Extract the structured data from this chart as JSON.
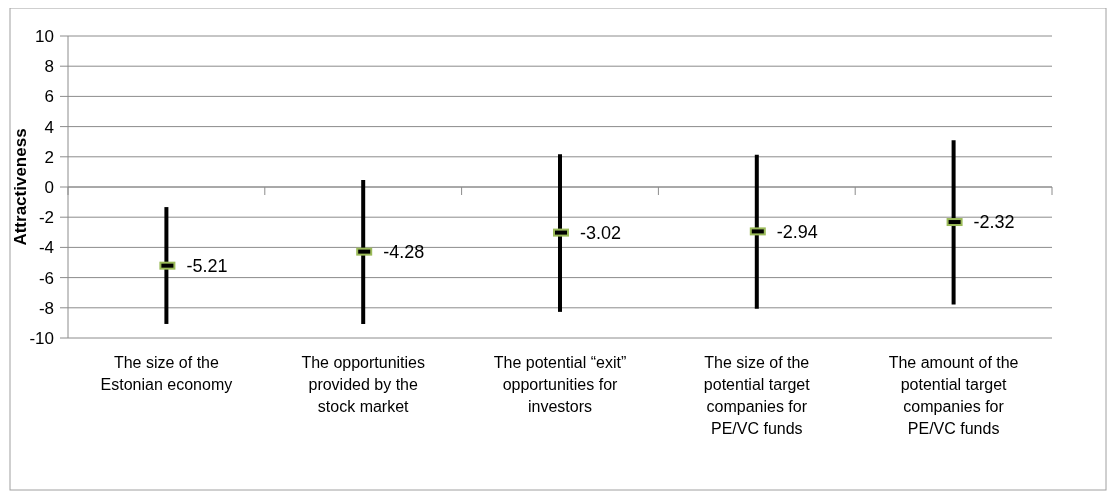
{
  "chart_data": {
    "type": "scatter",
    "ylabel": "Attractiveness",
    "categories": [
      "The size of the Estonian economy",
      "The opportunities provided by the stock market",
      "The potential “exit” opportunities for investors",
      "The size of the potential target companies for PE/VC funds",
      "The amount of the potential target companies for PE/VC funds"
    ],
    "series": [
      {
        "color": "#9bbb59",
        "values": [
          -5.21,
          -4.28,
          -3.02,
          -2.94,
          -2.32
        ],
        "errors": [
          [
            -9.07,
            -1.33
          ],
          [
            -9.07,
            0.46
          ],
          [
            -8.27,
            2.17
          ],
          [
            -8.07,
            2.13
          ],
          [
            -7.78,
            3.1
          ]
        ]
      }
    ],
    "ylim": [
      -10,
      10
    ],
    "yticks": [
      -10,
      -8,
      -6,
      -4,
      -2,
      0,
      2,
      4,
      6,
      8,
      10
    ],
    "grid": "y",
    "data_labels": true
  }
}
